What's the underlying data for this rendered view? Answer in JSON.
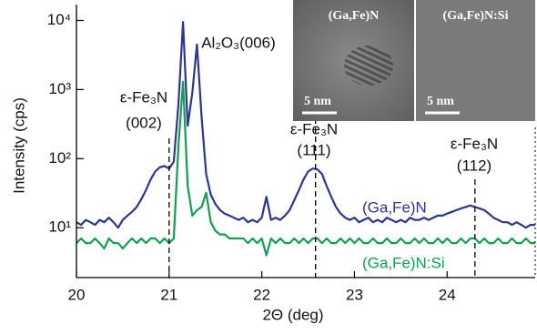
{
  "chart_data": {
    "type": "line",
    "x_label": "2Θ (deg)",
    "y_label": "Intensity (cps)",
    "log_y": true,
    "xlim": [
      20,
      24.95
    ],
    "ylim": [
      1.9,
      17000
    ],
    "xticks": [
      20,
      21,
      22,
      23,
      24
    ],
    "yticks": [
      {
        "value": 10,
        "label": "10¹"
      },
      {
        "value": 100,
        "label": "10²"
      },
      {
        "value": 1000,
        "label": "10³"
      },
      {
        "value": 10000,
        "label": "10⁴"
      }
    ],
    "x": [
      20.0,
      20.05,
      20.1,
      20.15,
      20.2,
      20.25,
      20.3,
      20.35,
      20.4,
      20.45,
      20.5,
      20.55,
      20.6,
      20.65,
      20.7,
      20.75,
      20.8,
      20.85,
      20.9,
      20.95,
      21.0,
      21.05,
      21.1,
      21.15,
      21.2,
      21.25,
      21.3,
      21.35,
      21.4,
      21.45,
      21.5,
      21.55,
      21.6,
      21.65,
      21.7,
      21.75,
      21.8,
      21.85,
      21.9,
      21.95,
      22.0,
      22.05,
      22.1,
      22.15,
      22.2,
      22.25,
      22.3,
      22.35,
      22.4,
      22.45,
      22.5,
      22.55,
      22.6,
      22.65,
      22.7,
      22.75,
      22.8,
      22.85,
      22.9,
      22.95,
      23.0,
      23.05,
      23.1,
      23.15,
      23.2,
      23.25,
      23.3,
      23.35,
      23.4,
      23.45,
      23.5,
      23.55,
      23.6,
      23.65,
      23.7,
      23.75,
      23.8,
      23.85,
      23.9,
      23.95,
      24.0,
      24.05,
      24.1,
      24.15,
      24.2,
      24.25,
      24.3,
      24.35,
      24.4,
      24.45,
      24.5,
      24.55,
      24.6,
      24.65,
      24.7,
      24.75,
      24.8,
      24.85,
      24.9,
      24.95
    ],
    "series": [
      {
        "name": "(Ga,Fe)N",
        "color": "#2b3593",
        "values": [
          12,
          11,
          13,
          12,
          11,
          13,
          12,
          14,
          12,
          10,
          13,
          15,
          17,
          20,
          26,
          35,
          50,
          65,
          75,
          78,
          72,
          90,
          600,
          9500,
          300,
          900,
          4500,
          400,
          60,
          30,
          22,
          18,
          16,
          15,
          14,
          13,
          14,
          12,
          13,
          12,
          14,
          28,
          13,
          14,
          13,
          15,
          18,
          25,
          35,
          50,
          65,
          72,
          70,
          60,
          40,
          28,
          20,
          16,
          14,
          13,
          14,
          12,
          13,
          14,
          12,
          13,
          12,
          14,
          13,
          12,
          13,
          12,
          14,
          13,
          13,
          14,
          13,
          14,
          15,
          15,
          16,
          17,
          18,
          19,
          20,
          21,
          20,
          19,
          18,
          16,
          14,
          13,
          12,
          12,
          11,
          12,
          11,
          10,
          11,
          11
        ]
      },
      {
        "name": "(Ga,Fe)N:Si",
        "color": "#12a050",
        "values": [
          6,
          7,
          6,
          6,
          7,
          6,
          5,
          7,
          6,
          6,
          5,
          6,
          7,
          6,
          7,
          6,
          7,
          7,
          6,
          7,
          6,
          7,
          150,
          1300,
          40,
          15,
          18,
          20,
          32,
          12,
          9,
          8,
          8,
          7,
          7,
          7,
          7,
          6,
          7,
          6,
          7,
          4,
          7,
          6,
          7,
          6,
          6,
          7,
          6,
          7,
          6,
          7,
          7,
          6,
          7,
          6,
          6,
          7,
          6,
          7,
          6,
          7,
          6,
          6,
          7,
          6,
          6,
          7,
          6,
          6,
          7,
          6,
          6,
          7,
          6,
          7,
          6,
          6,
          7,
          6,
          7,
          6,
          6,
          7,
          6,
          7,
          7,
          6,
          7,
          6,
          6,
          7,
          6,
          6,
          7,
          6,
          6,
          7,
          6,
          6
        ]
      }
    ],
    "vlines": [
      21.0,
      22.58,
      24.3
    ],
    "annotations": [
      "ε-Fe₃N",
      "(002)",
      "Al₂O₃(006)",
      "ε-Fe₃N",
      "(111)",
      "ε-Fe₃N",
      "(112)"
    ],
    "insets": [
      {
        "label": "(Ga,Fe)N",
        "scale": "5 nm"
      },
      {
        "label": "(Ga,Fe)N:Si",
        "scale": "5 nm"
      }
    ]
  }
}
